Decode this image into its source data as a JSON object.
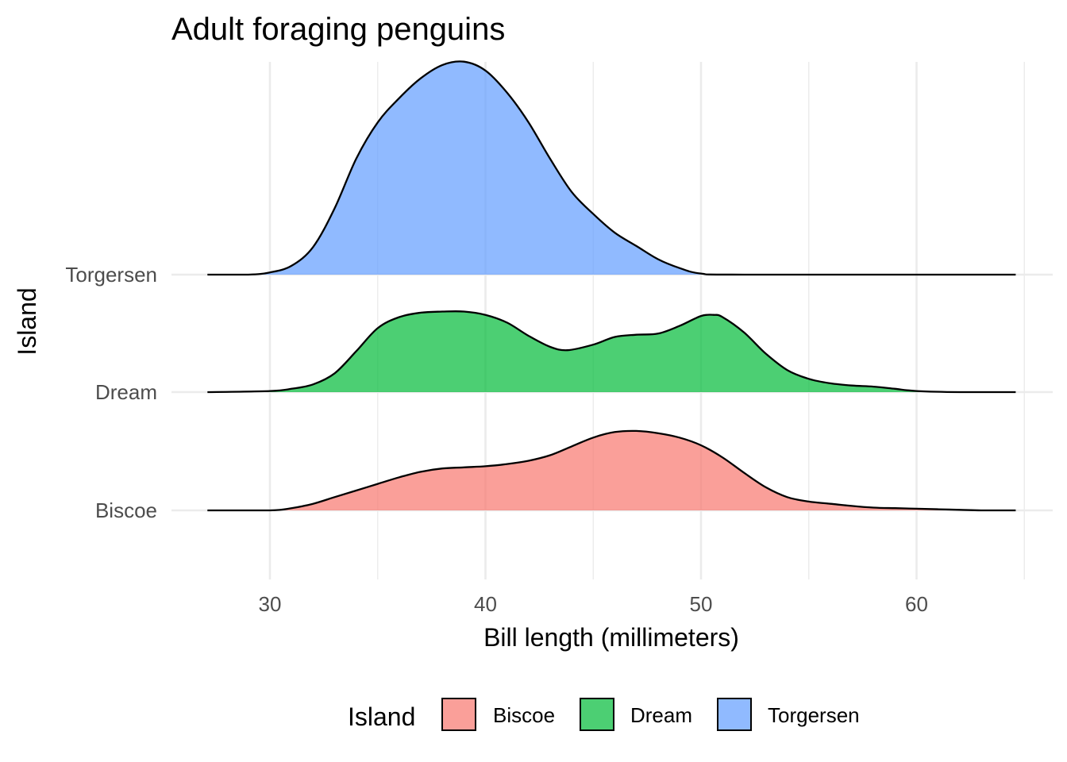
{
  "chart_data": {
    "type": "area",
    "subtype": "ridgeline-density",
    "title": "Adult foraging penguins",
    "xlabel": "Bill length (millimeters)",
    "ylabel": "Island",
    "xlim": [
      25.4,
      65
    ],
    "x_ticks": [
      30,
      40,
      50,
      60
    ],
    "grid": true,
    "legend": {
      "title": "Island",
      "position": "bottom",
      "items": [
        "Biscoe",
        "Dream",
        "Torgersen"
      ]
    },
    "categories": [
      "Biscoe",
      "Dream",
      "Torgersen"
    ],
    "fill_opacity": 0.7,
    "series": [
      {
        "name": "Biscoe",
        "color": "#F8766D",
        "x": [
          27.1,
          30,
          31,
          32,
          33,
          34,
          35,
          36,
          37,
          38,
          39,
          40,
          41,
          42,
          43,
          44,
          45,
          46,
          47,
          48,
          49,
          50,
          51,
          52,
          53,
          54,
          55,
          56,
          57,
          58,
          59,
          60,
          61,
          62,
          63,
          64.6
        ],
        "density": [
          0.0,
          0.0,
          0.002,
          0.006,
          0.012,
          0.018,
          0.024,
          0.03,
          0.035,
          0.038,
          0.039,
          0.04,
          0.042,
          0.045,
          0.05,
          0.058,
          0.066,
          0.071,
          0.072,
          0.07,
          0.066,
          0.059,
          0.048,
          0.034,
          0.021,
          0.012,
          0.008,
          0.006,
          0.004,
          0.0025,
          0.002,
          0.0015,
          0.001,
          0.0005,
          0.0,
          0.0
        ]
      },
      {
        "name": "Dream",
        "color": "#00BA38",
        "x": [
          27.1,
          30,
          31,
          32,
          33,
          34,
          35,
          36,
          37,
          38,
          39,
          40,
          41,
          42,
          43,
          43.8,
          45,
          46,
          47,
          48,
          49,
          50,
          50.6,
          51,
          52,
          53,
          54,
          55,
          56,
          57,
          58,
          59,
          60,
          62,
          64.6
        ],
        "density": [
          0.0,
          0.001,
          0.003,
          0.007,
          0.017,
          0.037,
          0.058,
          0.068,
          0.072,
          0.073,
          0.073,
          0.07,
          0.063,
          0.051,
          0.041,
          0.038,
          0.043,
          0.05,
          0.052,
          0.053,
          0.06,
          0.069,
          0.07,
          0.068,
          0.054,
          0.035,
          0.02,
          0.012,
          0.008,
          0.006,
          0.005,
          0.003,
          0.001,
          0.0,
          0.0
        ]
      },
      {
        "name": "Torgersen",
        "color": "#619CFF",
        "x": [
          27.1,
          29,
          30,
          31,
          32,
          33,
          34,
          35,
          36,
          37,
          38,
          39,
          40,
          41,
          42,
          43,
          44,
          45,
          46,
          47,
          48,
          49,
          50,
          52,
          64.6
        ],
        "density": [
          0.0,
          0.0,
          0.002,
          0.008,
          0.025,
          0.06,
          0.105,
          0.138,
          0.16,
          0.178,
          0.19,
          0.193,
          0.185,
          0.165,
          0.138,
          0.105,
          0.075,
          0.055,
          0.038,
          0.026,
          0.014,
          0.006,
          0.001,
          0.0,
          0.0
        ]
      }
    ]
  }
}
